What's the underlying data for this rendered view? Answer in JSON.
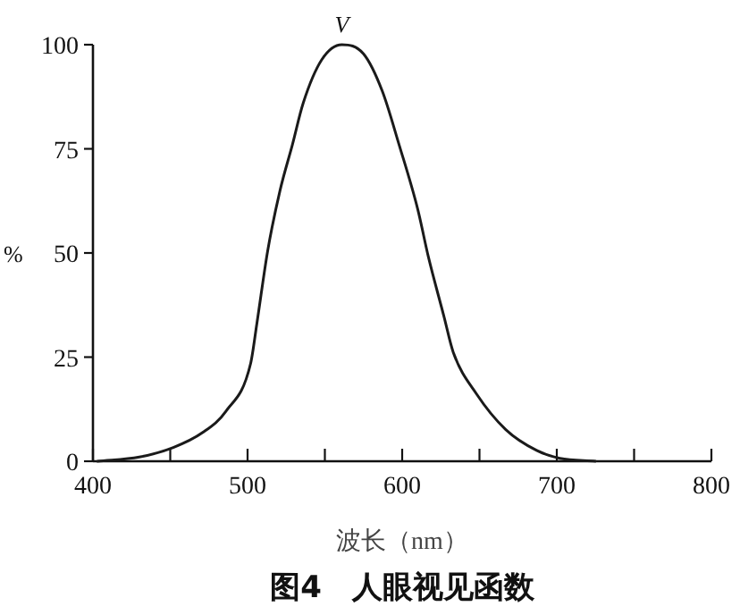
{
  "chart_data": {
    "type": "line",
    "title": "图4　人眼视见函数",
    "xlabel": "波长（nm）",
    "ylabel": "%",
    "x": [
      403,
      430,
      452,
      471,
      486,
      502,
      506,
      513,
      521,
      529,
      536,
      548,
      561,
      575,
      587,
      598,
      610,
      617,
      627,
      633,
      648,
      667,
      687,
      702,
      725
    ],
    "series": [
      {
        "color": "#1a1a1a",
        "values": [
          0,
          1,
          3.3,
          6.9,
          12,
          23.5,
          33,
          50.5,
          65,
          76,
          86,
          96.4,
          100,
          97.8,
          89,
          76,
          60.6,
          49,
          34.8,
          26.2,
          16.2,
          7.6,
          2.6,
          0.7,
          0
        ]
      }
    ],
    "xlim": [
      400,
      800
    ],
    "ylim": [
      0,
      100
    ],
    "xticks": [
      400,
      {
        "value": 450,
        "label": null
      },
      500,
      {
        "value": 550,
        "label": null
      },
      600,
      {
        "value": 650,
        "label": null
      },
      700,
      {
        "value": 750,
        "label": null
      },
      800
    ],
    "yticks": [
      0,
      25,
      50,
      75,
      100
    ],
    "annotations": [
      {
        "text": "V",
        "x": 561,
        "y": 100
      }
    ],
    "grid": false,
    "marker": "none",
    "line_style": "solid"
  }
}
